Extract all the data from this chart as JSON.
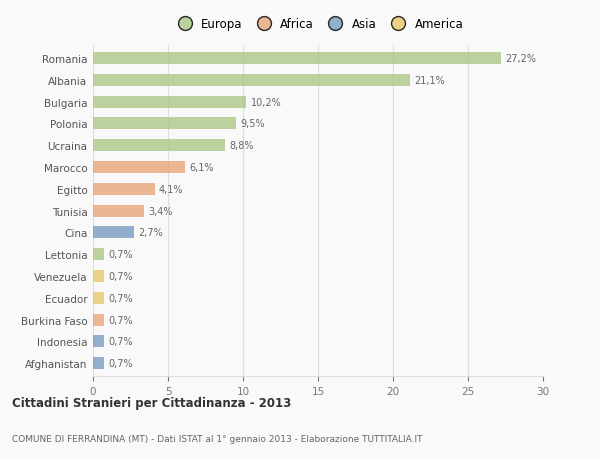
{
  "countries": [
    "Romania",
    "Albania",
    "Bulgaria",
    "Polonia",
    "Ucraina",
    "Marocco",
    "Egitto",
    "Tunisia",
    "Cina",
    "Lettonia",
    "Venezuela",
    "Ecuador",
    "Burkina Faso",
    "Indonesia",
    "Afghanistan"
  ],
  "values": [
    27.2,
    21.1,
    10.2,
    9.5,
    8.8,
    6.1,
    4.1,
    3.4,
    2.7,
    0.7,
    0.7,
    0.7,
    0.7,
    0.7,
    0.7
  ],
  "labels": [
    "27,2%",
    "21,1%",
    "10,2%",
    "9,5%",
    "8,8%",
    "6,1%",
    "4,1%",
    "3,4%",
    "2,7%",
    "0,7%",
    "0,7%",
    "0,7%",
    "0,7%",
    "0,7%",
    "0,7%"
  ],
  "colors": [
    "#aec98a",
    "#aec98a",
    "#aec98a",
    "#aec98a",
    "#aec98a",
    "#e8a87c",
    "#e8a87c",
    "#e8a87c",
    "#7b9fc4",
    "#aec98a",
    "#e8c96e",
    "#e8c96e",
    "#e8a87c",
    "#7b9fc4",
    "#7b9fc4"
  ],
  "legend_labels": [
    "Europa",
    "Africa",
    "Asia",
    "America"
  ],
  "legend_colors": [
    "#aec98a",
    "#e8a87c",
    "#7b9fc4",
    "#e8c96e"
  ],
  "title": "Cittadini Stranieri per Cittadinanza - 2013",
  "subtitle": "COMUNE DI FERRANDINA (MT) - Dati ISTAT al 1° gennaio 2013 - Elaborazione TUTTITALIA.IT",
  "xlim": [
    0,
    30
  ],
  "xticks": [
    0,
    5,
    10,
    15,
    20,
    25,
    30
  ],
  "background_color": "#f9f9f9",
  "grid_color": "#dddddd",
  "bar_alpha": 0.82,
  "bar_height": 0.55
}
